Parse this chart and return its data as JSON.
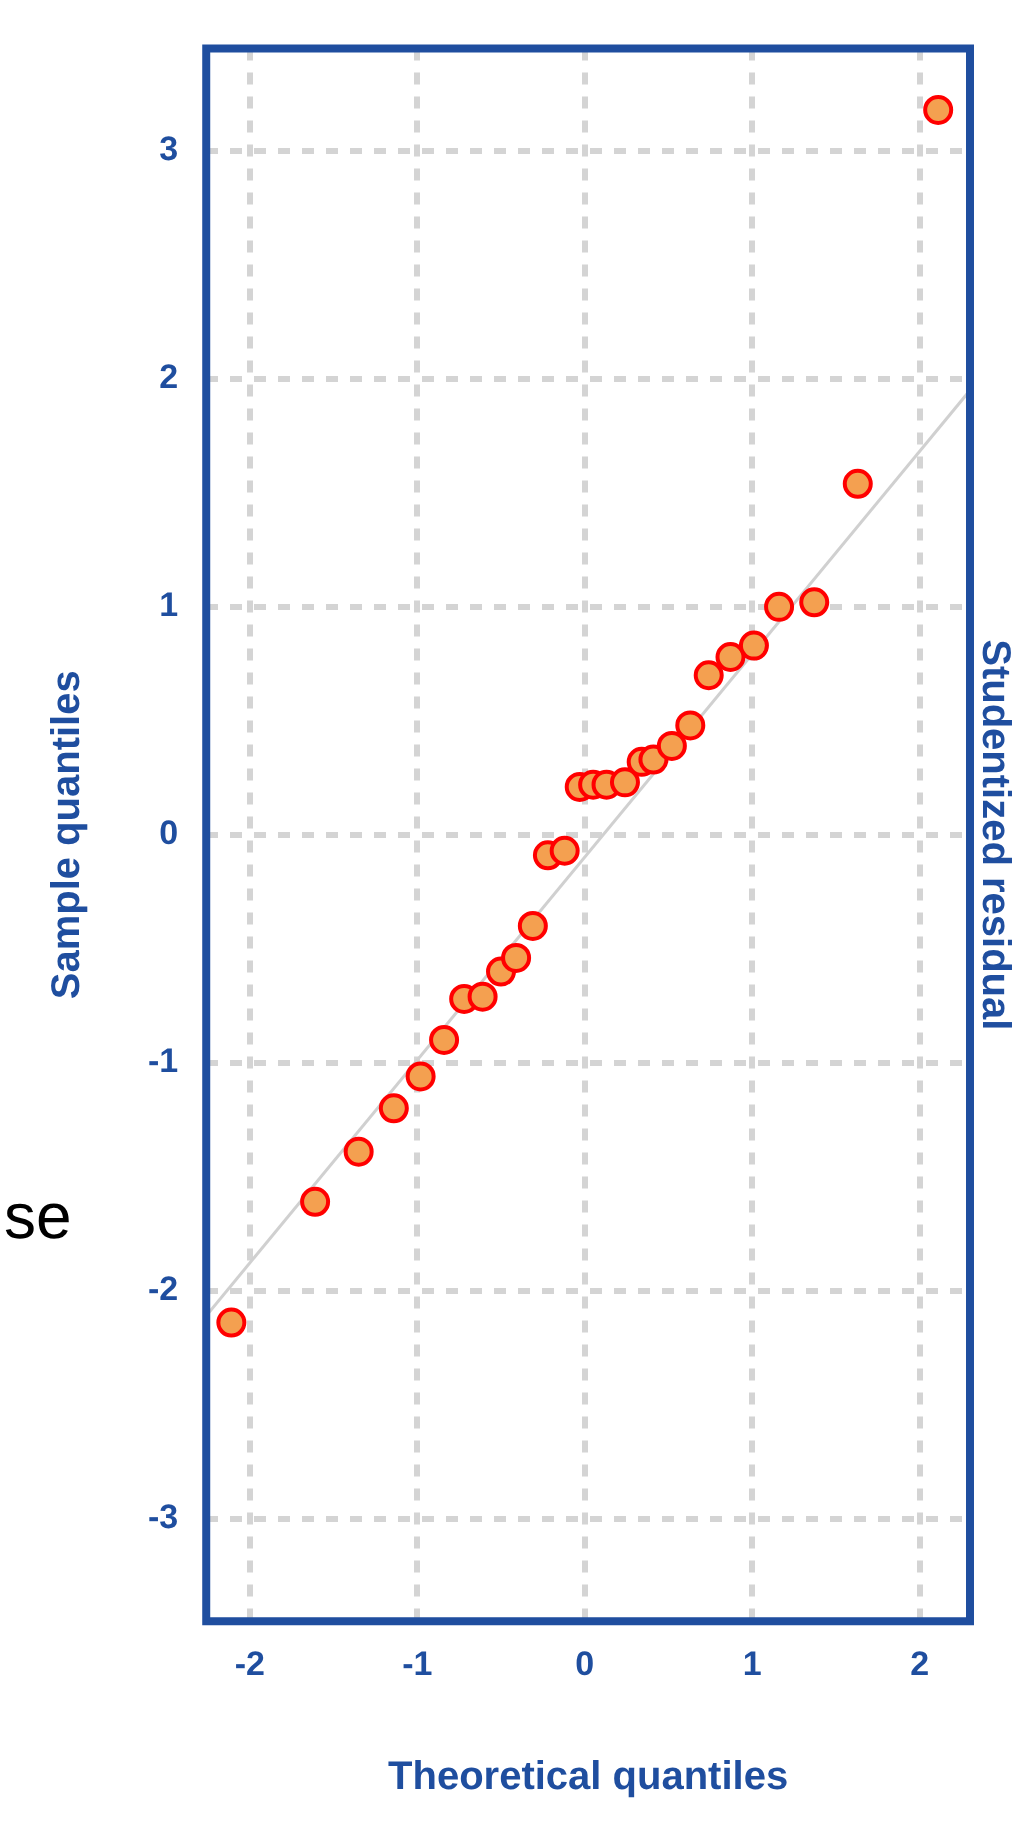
{
  "chart_data": {
    "type": "scatter",
    "xlabel": "Theoretical quantiles",
    "ylabel": "Sample quantiles",
    "y2label": "Studentized residual",
    "annotations": [
      "se"
    ],
    "x": [
      -2.11,
      -1.61,
      -1.35,
      -1.14,
      -0.98,
      -0.84,
      -0.72,
      -0.61,
      -0.5,
      -0.41,
      -0.31,
      -0.22,
      -0.12,
      -0.03,
      0.05,
      0.13,
      0.24,
      0.34,
      0.41,
      0.52,
      0.63,
      0.74,
      0.87,
      1.01,
      1.16,
      1.37,
      1.63,
      2.11
    ],
    "series": [
      {
        "color": "#f4a050",
        "marker": "circle",
        "values": [
          -2.14,
          -1.61,
          -1.39,
          -1.2,
          -1.06,
          -0.9,
          -0.72,
          -0.71,
          -0.6,
          -0.54,
          -0.4,
          -0.09,
          -0.07,
          0.21,
          0.22,
          0.22,
          0.23,
          0.32,
          0.33,
          0.39,
          0.48,
          0.7,
          0.78,
          0.83,
          1.0,
          1.02,
          1.54,
          3.18
        ]
      },
      {
        "type": "line",
        "color": "#d0d0d0",
        "marker": "none",
        "x": [
          -2.26,
          2.3
        ],
        "values": [
          -2.11,
          1.95
        ]
      }
    ],
    "xlim": [
      -2.26,
      2.3
    ],
    "ylim": [
      -3.45,
      3.45
    ],
    "xticks": [
      -2,
      -1,
      0,
      1,
      2
    ],
    "yticks": [
      -3,
      -2,
      -1,
      0,
      1,
      2,
      3
    ],
    "grid": true,
    "legend": false
  }
}
